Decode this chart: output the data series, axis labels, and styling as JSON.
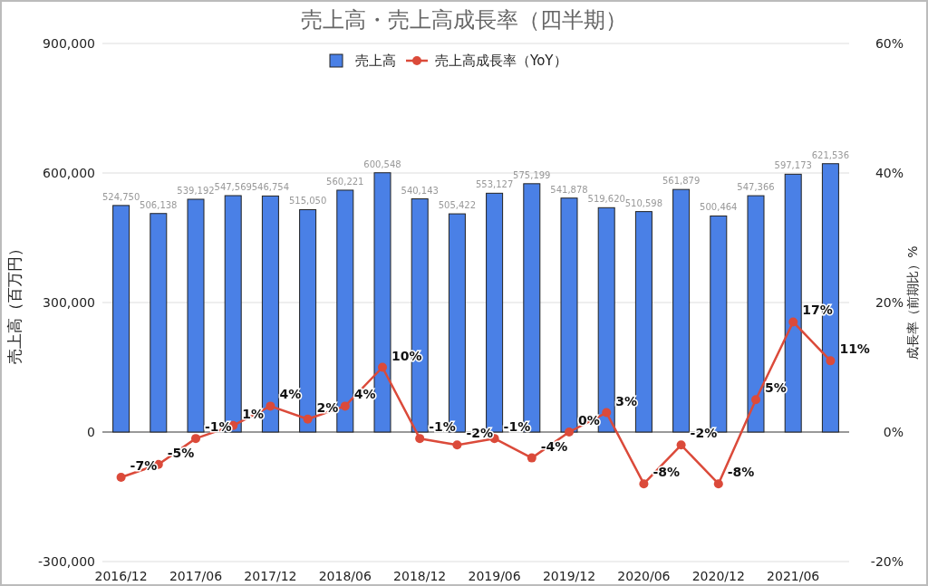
{
  "chart_data": {
    "type": "bar",
    "title": "売上高・売上高成長率（四半期）",
    "ylabel": "売上高（百万円）",
    "y2label": "成長率（前期比）%",
    "categories": [
      "2016/12",
      null,
      "2017/06",
      null,
      "2017/12",
      null,
      "2018/06",
      null,
      "2018/12",
      null,
      "2019/06",
      null,
      "2019/12",
      null,
      "2020/06",
      null,
      "2020/12",
      null,
      "2021/06",
      null
    ],
    "series": [
      {
        "name": "売上高",
        "color": "#4a80e6",
        "values": [
          524750,
          506138,
          539192,
          547569,
          546754,
          515050,
          560221,
          600548,
          540143,
          505422,
          553127,
          575199,
          541878,
          519620,
          510598,
          561879,
          500464,
          547366,
          597173,
          621536
        ],
        "value_labels": [
          "524,750",
          "506,138",
          "539,192",
          "547,569",
          "546,754",
          "515,050",
          "560,221",
          "600,548",
          "540,143",
          "505,422",
          "553,127",
          "575,199",
          "541,878",
          "519,620",
          "510,598",
          "561,879",
          "500,464",
          "547,366",
          "597,173",
          "621,536"
        ]
      },
      {
        "name": "売上高成長率（YoY）",
        "type": "line",
        "axis": "y2",
        "color": "#db4a3a",
        "values": [
          -7,
          -5,
          -1,
          1,
          4,
          2,
          4,
          10,
          -1,
          -2,
          -1,
          -4,
          0,
          3,
          -8,
          -2,
          -8,
          5,
          17,
          11
        ],
        "value_labels": [
          "-7%",
          "-5%",
          "-1%",
          "1%",
          "4%",
          "2%",
          "4%",
          "10%",
          "-1%",
          "-2%",
          "-1%",
          "-4%",
          "0%",
          "3%",
          "-8%",
          "-2%",
          "-8%",
          "5%",
          "17%",
          "11%"
        ]
      }
    ],
    "ylim": [
      -300000,
      900000
    ],
    "yticks": [
      {
        "value": -300000,
        "label": "-300,000"
      },
      0,
      {
        "value": 300000,
        "label": "300,000"
      },
      {
        "value": 600000,
        "label": "600,000"
      },
      {
        "value": 900000,
        "label": "900,000"
      }
    ],
    "y2lim": [
      -20,
      60
    ],
    "y2ticks": [
      {
        "value": -20,
        "label": "-20%"
      },
      {
        "value": 0,
        "label": "0%"
      },
      {
        "value": 20,
        "label": "20%"
      },
      {
        "value": 40,
        "label": "40%"
      },
      {
        "value": 60,
        "label": "60%"
      }
    ],
    "grid": "y",
    "legend": "top",
    "marker": "circle"
  }
}
